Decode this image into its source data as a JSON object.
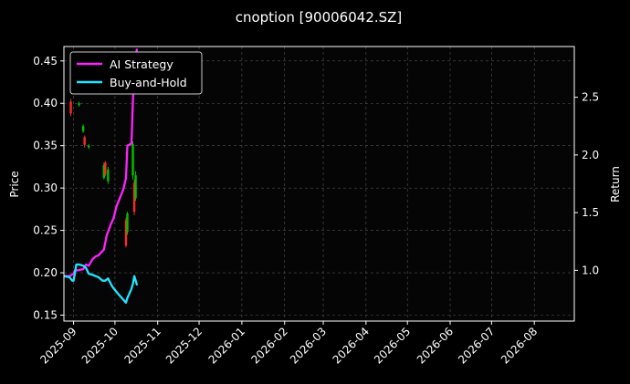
{
  "chart_data": {
    "type": "line",
    "title": "cnoption [90006042.SZ]",
    "xlabel": "",
    "ylabel": "Price",
    "y2label": "Return",
    "x_range": [
      "2025-08-25",
      "2026-08-30"
    ],
    "ylim": [
      0.143,
      0.467
    ],
    "y2lim": [
      0.56,
      2.94
    ],
    "y_ticks": [
      0.15,
      0.2,
      0.25,
      0.3,
      0.35,
      0.4,
      0.45
    ],
    "y_tick_labels": [
      "0.15",
      "0.20",
      "0.25",
      "0.30",
      "0.35",
      "0.40",
      "0.45"
    ],
    "y2_ticks": [
      1.0,
      1.5,
      2.0,
      2.5
    ],
    "y2_tick_labels": [
      "1.0",
      "1.5",
      "2.0",
      "2.5"
    ],
    "x_ticks": [
      "2025-09-01",
      "2025-10-01",
      "2025-11-01",
      "2025-12-01",
      "2026-01-01",
      "2026-02-01",
      "2026-03-01",
      "2026-04-01",
      "2026-05-01",
      "2026-06-01",
      "2026-07-01",
      "2026-08-01"
    ],
    "x_tick_labels": [
      "2025-09",
      "2025-10",
      "2025-11",
      "2025-12",
      "2026-01",
      "2026-02",
      "2026-03",
      "2026-04",
      "2026-05",
      "2026-06",
      "2026-07",
      "2026-08"
    ],
    "grid": true,
    "legend_position": "top-left",
    "colors": {
      "background": "#000000",
      "panel": "#050505",
      "grid": "#555555",
      "up": "#00c000",
      "down": "#ff2a2a",
      "strategy": "#ff22ff",
      "buyhold": "#22e4ff"
    },
    "series": [
      {
        "name": "AI Strategy",
        "axis": "right",
        "x": [
          "2025-08-25",
          "2025-08-29",
          "2025-09-01",
          "2025-09-02",
          "2025-09-04",
          "2025-09-08",
          "2025-09-10",
          "2025-09-12",
          "2025-09-15",
          "2025-09-17",
          "2025-09-19",
          "2025-09-23",
          "2025-09-25",
          "2025-09-28",
          "2025-09-30",
          "2025-10-02",
          "2025-10-07",
          "2025-10-09",
          "2025-10-10",
          "2025-10-13",
          "2025-10-14",
          "2025-10-15",
          "2025-10-17"
        ],
        "values": [
          0.95,
          0.95,
          0.97,
          1.0,
          1.0,
          1.01,
          1.05,
          1.04,
          1.1,
          1.12,
          1.13,
          1.18,
          1.3,
          1.4,
          1.45,
          1.55,
          1.7,
          1.8,
          2.08,
          2.1,
          2.45,
          2.8,
          2.92
        ]
      },
      {
        "name": "Buy-and-Hold",
        "axis": "right",
        "x": [
          "2025-08-25",
          "2025-08-29",
          "2025-08-31",
          "2025-09-01",
          "2025-09-03",
          "2025-09-05",
          "2025-09-08",
          "2025-09-10",
          "2025-09-12",
          "2025-09-15",
          "2025-09-17",
          "2025-09-19",
          "2025-09-22",
          "2025-09-24",
          "2025-09-26",
          "2025-09-29",
          "2025-10-03",
          "2025-10-09",
          "2025-10-10",
          "2025-10-13",
          "2025-10-14",
          "2025-10-15",
          "2025-10-17"
        ],
        "values": [
          0.95,
          0.94,
          0.91,
          0.91,
          1.05,
          1.05,
          1.04,
          1.02,
          0.97,
          0.96,
          0.95,
          0.94,
          0.91,
          0.91,
          0.93,
          0.86,
          0.8,
          0.72,
          0.76,
          0.84,
          0.88,
          0.95,
          0.87
        ]
      }
    ],
    "candles": [
      {
        "date": "2025-08-30",
        "low": 0.385,
        "high": 0.405,
        "open": 0.402,
        "close": 0.388
      },
      {
        "date": "2025-09-05",
        "low": 0.396,
        "high": 0.402,
        "open": 0.398,
        "close": 0.4
      },
      {
        "date": "2025-09-08",
        "low": 0.365,
        "high": 0.375,
        "open": 0.367,
        "close": 0.373
      },
      {
        "date": "2025-09-09",
        "low": 0.348,
        "high": 0.362,
        "open": 0.36,
        "close": 0.351
      },
      {
        "date": "2025-09-12",
        "low": 0.346,
        "high": 0.352,
        "open": 0.348,
        "close": 0.35
      },
      {
        "date": "2025-09-23",
        "low": 0.31,
        "high": 0.33,
        "open": 0.312,
        "close": 0.327
      },
      {
        "date": "2025-09-24",
        "low": 0.314,
        "high": 0.332,
        "open": 0.33,
        "close": 0.316
      },
      {
        "date": "2025-09-26",
        "low": 0.305,
        "high": 0.325,
        "open": 0.308,
        "close": 0.322
      },
      {
        "date": "2025-10-09",
        "low": 0.23,
        "high": 0.265,
        "open": 0.262,
        "close": 0.232
      },
      {
        "date": "2025-10-10",
        "low": 0.245,
        "high": 0.272,
        "open": 0.248,
        "close": 0.27
      },
      {
        "date": "2025-10-14",
        "low": 0.31,
        "high": 0.355,
        "open": 0.315,
        "close": 0.352
      },
      {
        "date": "2025-10-15",
        "low": 0.268,
        "high": 0.31,
        "open": 0.306,
        "close": 0.272
      },
      {
        "date": "2025-10-16",
        "low": 0.285,
        "high": 0.32,
        "open": 0.288,
        "close": 0.315
      }
    ]
  }
}
